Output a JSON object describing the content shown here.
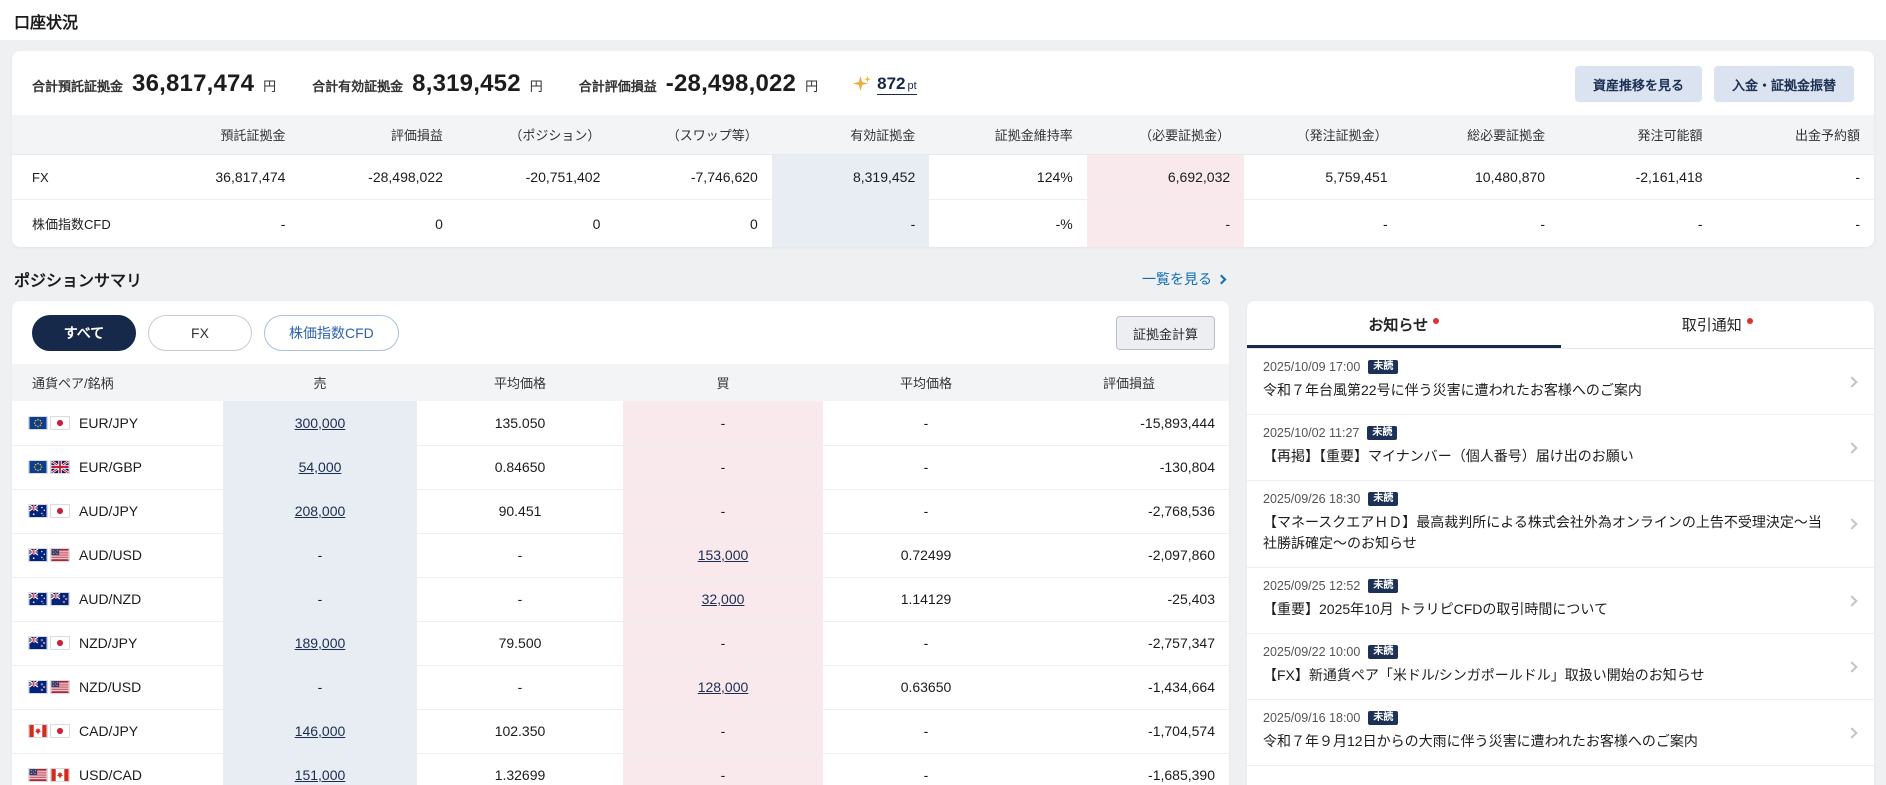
{
  "page": {
    "title": "口座状況"
  },
  "account": {
    "summary": [
      {
        "label": "合計預託証拠金",
        "value": "36,817,474",
        "unit": "円"
      },
      {
        "label": "合計有効証拠金",
        "value": "8,319,452",
        "unit": "円"
      },
      {
        "label": "合計評価損益",
        "value": "-28,498,022",
        "unit": "円"
      }
    ],
    "points": {
      "value": "872",
      "unit": "pt"
    },
    "buttons": [
      {
        "label": "資産推移を見る"
      },
      {
        "label": "入金・証拠金振替"
      }
    ],
    "table": {
      "headers": [
        "",
        "預託証拠金",
        "評価損益",
        "（ポジション）",
        "（スワップ等）",
        "有効証拠金",
        "証拠金維持率",
        "（必要証拠金）",
        "（発注証拠金）",
        "総必要証拠金",
        "発注可能額",
        "出金予約額"
      ],
      "rows": [
        {
          "label": "FX",
          "cells": [
            "36,817,474",
            "-28,498,022",
            "-20,751,402",
            "-7,746,620",
            "8,319,452",
            "124%",
            "6,692,032",
            "5,759,451",
            "10,480,870",
            "-2,161,418",
            "-"
          ]
        },
        {
          "label": "株価指数CFD",
          "cells": [
            "-",
            "0",
            "0",
            "0",
            "-",
            "-%",
            "-",
            "-",
            "-",
            "-",
            "-"
          ]
        }
      ]
    }
  },
  "positions": {
    "title": "ポジションサマリ",
    "view_all": "一覧を見る",
    "calc_button": "証拠金計算",
    "tabs": [
      {
        "id": "all",
        "label": "すべて",
        "active": true
      },
      {
        "id": "fx",
        "label": "FX",
        "active": false
      },
      {
        "id": "cfd",
        "label": "株価指数CFD",
        "active": false
      }
    ],
    "table": {
      "headers": [
        "通貨ペア/銘柄",
        "売",
        "平均価格",
        "買",
        "平均価格",
        "評価損益"
      ],
      "rows": [
        {
          "pair": "EUR/JPY",
          "flags": [
            "eu",
            "jp"
          ],
          "sell": "300,000",
          "sell_avg": "135.050",
          "buy": "-",
          "buy_avg": "-",
          "pl": "-15,893,444"
        },
        {
          "pair": "EUR/GBP",
          "flags": [
            "eu",
            "gb"
          ],
          "sell": "54,000",
          "sell_avg": "0.84650",
          "buy": "-",
          "buy_avg": "-",
          "pl": "-130,804"
        },
        {
          "pair": "AUD/JPY",
          "flags": [
            "au",
            "jp"
          ],
          "sell": "208,000",
          "sell_avg": "90.451",
          "buy": "-",
          "buy_avg": "-",
          "pl": "-2,768,536"
        },
        {
          "pair": "AUD/USD",
          "flags": [
            "au",
            "us"
          ],
          "sell": "-",
          "sell_avg": "-",
          "buy": "153,000",
          "buy_avg": "0.72499",
          "pl": "-2,097,860"
        },
        {
          "pair": "AUD/NZD",
          "flags": [
            "au",
            "nz"
          ],
          "sell": "-",
          "sell_avg": "-",
          "buy": "32,000",
          "buy_avg": "1.14129",
          "pl": "-25,403"
        },
        {
          "pair": "NZD/JPY",
          "flags": [
            "nz",
            "jp"
          ],
          "sell": "189,000",
          "sell_avg": "79.500",
          "buy": "-",
          "buy_avg": "-",
          "pl": "-2,757,347"
        },
        {
          "pair": "NZD/USD",
          "flags": [
            "nz",
            "us"
          ],
          "sell": "-",
          "sell_avg": "-",
          "buy": "128,000",
          "buy_avg": "0.63650",
          "pl": "-1,434,664"
        },
        {
          "pair": "CAD/JPY",
          "flags": [
            "ca",
            "jp"
          ],
          "sell": "146,000",
          "sell_avg": "102.350",
          "buy": "-",
          "buy_avg": "-",
          "pl": "-1,704,574"
        },
        {
          "pair": "USD/CAD",
          "flags": [
            "us",
            "ca"
          ],
          "sell": "151,000",
          "sell_avg": "1.32699",
          "buy": "-",
          "buy_avg": "-",
          "pl": "-1,685,390"
        }
      ]
    }
  },
  "notices": {
    "tabs": [
      {
        "id": "notices",
        "label": "お知らせ",
        "active": true,
        "dot": true
      },
      {
        "id": "trade-alerts",
        "label": "取引通知",
        "active": false,
        "dot": true
      }
    ],
    "items": [
      {
        "datetime": "2025/10/09 17:00",
        "badge": "未読",
        "title": "令和７年台風第22号に伴う災害に遭われたお客様へのご案内"
      },
      {
        "datetime": "2025/10/02 11:27",
        "badge": "未読",
        "title": "【再掲】【重要】マイナンバー（個人番号）届け出のお願い"
      },
      {
        "datetime": "2025/09/26 18:30",
        "badge": "未読",
        "title": "【マネースクエアＨＤ】最高裁判所による株式会社外為オンラインの上告不受理決定～当社勝訴確定～のお知らせ"
      },
      {
        "datetime": "2025/09/25 12:52",
        "badge": "未読",
        "title": "【重要】2025年10月 トラリピCFDの取引時間について"
      },
      {
        "datetime": "2025/09/22 10:00",
        "badge": "未読",
        "title": "【FX】新通貨ペア「米ドル/シンガポールドル」取扱い開始のお知らせ"
      },
      {
        "datetime": "2025/09/16 18:00",
        "badge": "未読",
        "title": "令和７年９月12日からの大雨に伴う災害に遭われたお客様へのご案内"
      }
    ]
  }
}
